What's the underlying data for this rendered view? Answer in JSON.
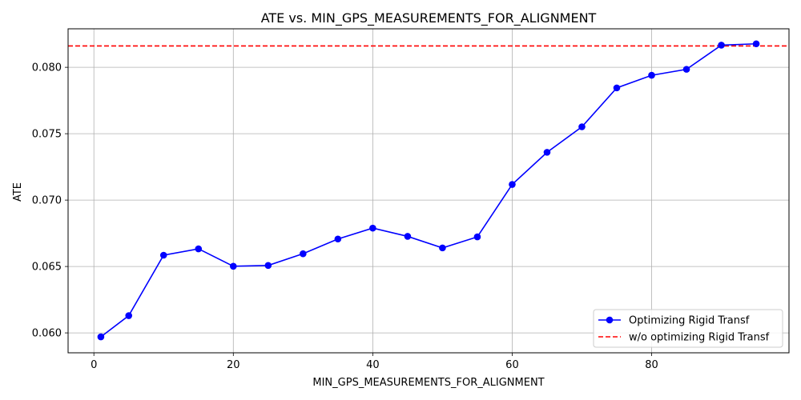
{
  "chart_data": {
    "type": "line",
    "title": "ATE vs. MIN_GPS_MEASUREMENTS_FOR_ALIGNMENT",
    "xlabel": "MIN_GPS_MEASUREMENTS_FOR_ALIGNMENT",
    "ylabel": "ATE",
    "xlim": [
      -3.7,
      99.7
    ],
    "ylim": [
      0.0585,
      0.0829
    ],
    "xticks": [
      0,
      20,
      40,
      60,
      80
    ],
    "xtick_labels": [
      "0",
      "20",
      "40",
      "60",
      "80"
    ],
    "yticks": [
      0.06,
      0.065,
      0.07,
      0.075,
      0.08
    ],
    "ytick_labels": [
      "0.060",
      "0.065",
      "0.070",
      "0.075",
      "0.080"
    ],
    "grid": true,
    "legend_position": "bottom-right",
    "series": [
      {
        "name": "Optimizing Rigid Transf",
        "color": "#0000ff",
        "style": "solid",
        "marker": "circle",
        "x": [
          1,
          5,
          10,
          15,
          20,
          25,
          30,
          35,
          40,
          45,
          50,
          55,
          60,
          65,
          70,
          75,
          80,
          85,
          90,
          95
        ],
        "y": [
          0.0597,
          0.0613,
          0.06585,
          0.06633,
          0.06502,
          0.06508,
          0.06596,
          0.06707,
          0.06789,
          0.06727,
          0.0664,
          0.06723,
          0.07118,
          0.0736,
          0.07552,
          0.07845,
          0.0794,
          0.07985,
          0.08167,
          0.08177
        ]
      }
    ],
    "hlines": [
      {
        "name": "w/o optimizing Rigid Transf",
        "color": "#ff0000",
        "style": "dashed",
        "y": 0.08161
      }
    ]
  }
}
